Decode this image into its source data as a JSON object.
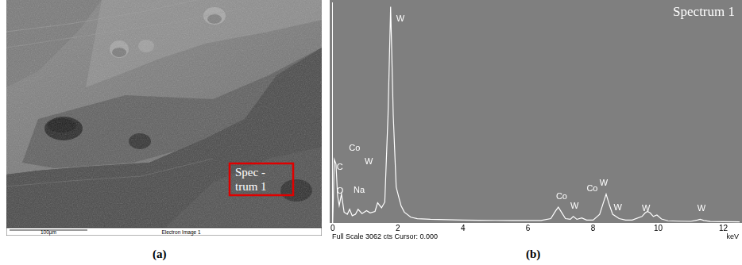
{
  "panel_a": {
    "label": "(a)",
    "box_text": [
      "Spec -",
      "trum 1"
    ],
    "scale_bar": "100µm",
    "caption": "Electron Image 1"
  },
  "chart_data": {
    "type": "line",
    "panel_label": "(b)",
    "title": "Spectrum 1",
    "x_label": "keV",
    "footer": "Full Scale 3062 cts Cursor: 0.000",
    "x": [
      0.0,
      0.05,
      0.1,
      0.15,
      0.2,
      0.27,
      0.35,
      0.45,
      0.52,
      0.6,
      0.7,
      0.78,
      0.9,
      1.04,
      1.15,
      1.3,
      1.38,
      1.5,
      1.6,
      1.7,
      1.78,
      1.86,
      1.95,
      2.04,
      2.1,
      2.2,
      2.4,
      2.6,
      3.0,
      3.5,
      4.0,
      4.5,
      5.0,
      5.5,
      6.0,
      6.4,
      6.7,
      6.85,
      6.93,
      7.0,
      7.15,
      7.3,
      7.39,
      7.5,
      7.65,
      7.8,
      8.0,
      8.2,
      8.3,
      8.4,
      8.5,
      8.6,
      8.8,
      9.0,
      9.2,
      9.5,
      9.6,
      9.67,
      9.75,
      9.85,
      9.96,
      10.1,
      10.3,
      10.6,
      11.0,
      11.2,
      11.29,
      11.4,
      11.6,
      12.0,
      12.5
    ],
    "values": [
      0,
      880,
      820,
      380,
      240,
      400,
      150,
      120,
      190,
      100,
      120,
      190,
      130,
      170,
      140,
      160,
      280,
      210,
      290,
      1500,
      3000,
      1500,
      500,
      340,
      240,
      150,
      80,
      60,
      50,
      45,
      40,
      38,
      36,
      35,
      34,
      34,
      60,
      170,
      220,
      170,
      60,
      50,
      90,
      50,
      70,
      40,
      40,
      120,
      260,
      400,
      250,
      120,
      60,
      40,
      40,
      90,
      140,
      160,
      140,
      90,
      110,
      55,
      30,
      25,
      22,
      40,
      50,
      35,
      20,
      18,
      16
    ],
    "color": "#ffffff",
    "xlim": [
      0,
      12.5
    ],
    "xticks": [
      0,
      2,
      4,
      6,
      8,
      10,
      12
    ],
    "ylim": [
      0,
      3062
    ],
    "grid": false,
    "tick_labels": "x",
    "annotations": [
      {
        "text": "C",
        "x": 0.12,
        "y": 770
      },
      {
        "text": "O",
        "x": 0.12,
        "y": 440
      },
      {
        "text": "Co",
        "x": 0.5,
        "y": 1040
      },
      {
        "text": "Na",
        "x": 0.64,
        "y": 450
      },
      {
        "text": "W",
        "x": 0.98,
        "y": 850
      },
      {
        "text": "W",
        "x": 1.95,
        "y": 2830
      },
      {
        "text": "Co",
        "x": 6.86,
        "y": 360
      },
      {
        "text": "W",
        "x": 7.3,
        "y": 230
      },
      {
        "text": "Co",
        "x": 7.8,
        "y": 470
      },
      {
        "text": "W",
        "x": 8.2,
        "y": 555
      },
      {
        "text": "W",
        "x": 8.63,
        "y": 210
      },
      {
        "text": "W",
        "x": 9.5,
        "y": 200
      },
      {
        "text": "W",
        "x": 11.2,
        "y": 200
      }
    ]
  }
}
